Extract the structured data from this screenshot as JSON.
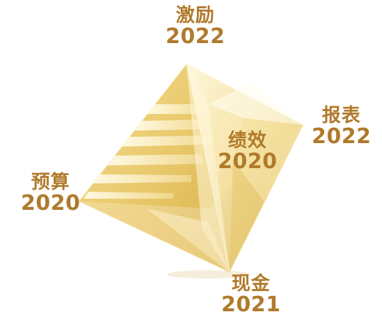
{
  "labels": {
    "top": {
      "name": "激励",
      "year": "2022"
    },
    "right": {
      "name": "报表",
      "year": "2022"
    },
    "center": {
      "name": "绩效",
      "year": "2020"
    },
    "left": {
      "name": "预算",
      "year": "2020"
    },
    "bottom": {
      "name": "现金",
      "year": "2021"
    }
  },
  "colors": {
    "label_text": "#b07a2c",
    "crystal_light": "#fbf1c8",
    "crystal_mid": "#ecd183",
    "crystal_dark": "#c9a23a"
  }
}
